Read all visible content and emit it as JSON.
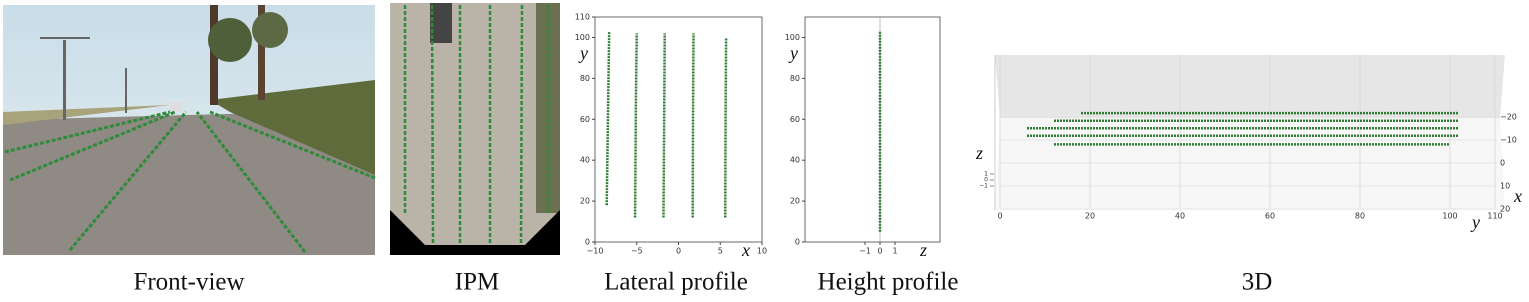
{
  "captions": [
    "Front-view",
    "IPM",
    "Lateral profile",
    "Height profile",
    "3D"
  ],
  "chart_data": [
    {
      "type": "line",
      "xlabel": "x",
      "ylabel": "y",
      "xlim": [
        -10,
        10
      ],
      "xticks": [
        {
          "value": -10,
          "label": "−10"
        },
        {
          "value": -5,
          "label": "−5"
        },
        0,
        5,
        10
      ],
      "ylim": [
        0,
        110
      ],
      "yticks": [
        0,
        20,
        40,
        60,
        80,
        100,
        110
      ],
      "series": [
        {
          "color": "#2e7d32",
          "x": [
            -8.6,
            -8.5,
            -8.4,
            -8.3
          ],
          "values": [
            18,
            45,
            75,
            103
          ]
        },
        {
          "color": "#2e7d32",
          "x": [
            -5.2,
            -5.15,
            -5.1,
            -5.0
          ],
          "values": [
            12,
            40,
            70,
            102
          ]
        },
        {
          "color": "#2e7d32",
          "x": [
            -1.8,
            -1.75,
            -1.7,
            -1.65
          ],
          "values": [
            12,
            40,
            70,
            102
          ]
        },
        {
          "color": "#2e7d32",
          "x": [
            1.7,
            1.72,
            1.75,
            1.8
          ],
          "values": [
            12,
            40,
            70,
            102
          ]
        },
        {
          "color": "#2e7d32",
          "x": [
            5.6,
            5.62,
            5.65,
            5.7
          ],
          "values": [
            12,
            40,
            70,
            100
          ]
        }
      ]
    },
    {
      "type": "line",
      "xlabel": "z",
      "ylabel": "y",
      "xlim": [
        -5,
        4
      ],
      "xticks": [
        {
          "value": -1,
          "label": "−1"
        },
        0,
        1
      ],
      "ylim": [
        0,
        110
      ],
      "yticks": [
        0,
        20,
        40,
        60,
        80,
        100
      ],
      "series": [
        {
          "color": "#2e7d32",
          "x": [
            0,
            0
          ],
          "values": [
            5,
            103
          ]
        }
      ]
    },
    {
      "type": "line3d",
      "xlabel": "x",
      "ylabel": "y",
      "zlabel": "z",
      "xlim": [
        0,
        110
      ],
      "xticks": [
        0,
        20,
        40,
        60,
        80,
        100,
        110
      ],
      "yticks": [
        {
          "value": -20,
          "label": "−20"
        },
        {
          "value": -10,
          "label": "−10"
        },
        0,
        10,
        20
      ],
      "zticks": [
        1,
        0,
        {
          "value": -1,
          "label": "−1"
        }
      ],
      "series": [
        {
          "color": "#2e7d32",
          "x": [
            18,
            102
          ],
          "values": [
            -8.6,
            -8.6
          ]
        },
        {
          "color": "#2e7d32",
          "x": [
            12,
            102
          ],
          "values": [
            -5.1,
            -5.1
          ]
        },
        {
          "color": "#2e7d32",
          "x": [
            6,
            102
          ],
          "values": [
            -1.7,
            -1.7
          ]
        },
        {
          "color": "#2e7d32",
          "x": [
            6,
            102
          ],
          "values": [
            1.7,
            1.7
          ]
        },
        {
          "color": "#2e7d32",
          "x": [
            12,
            100
          ],
          "values": [
            5.6,
            5.6
          ]
        }
      ]
    }
  ]
}
